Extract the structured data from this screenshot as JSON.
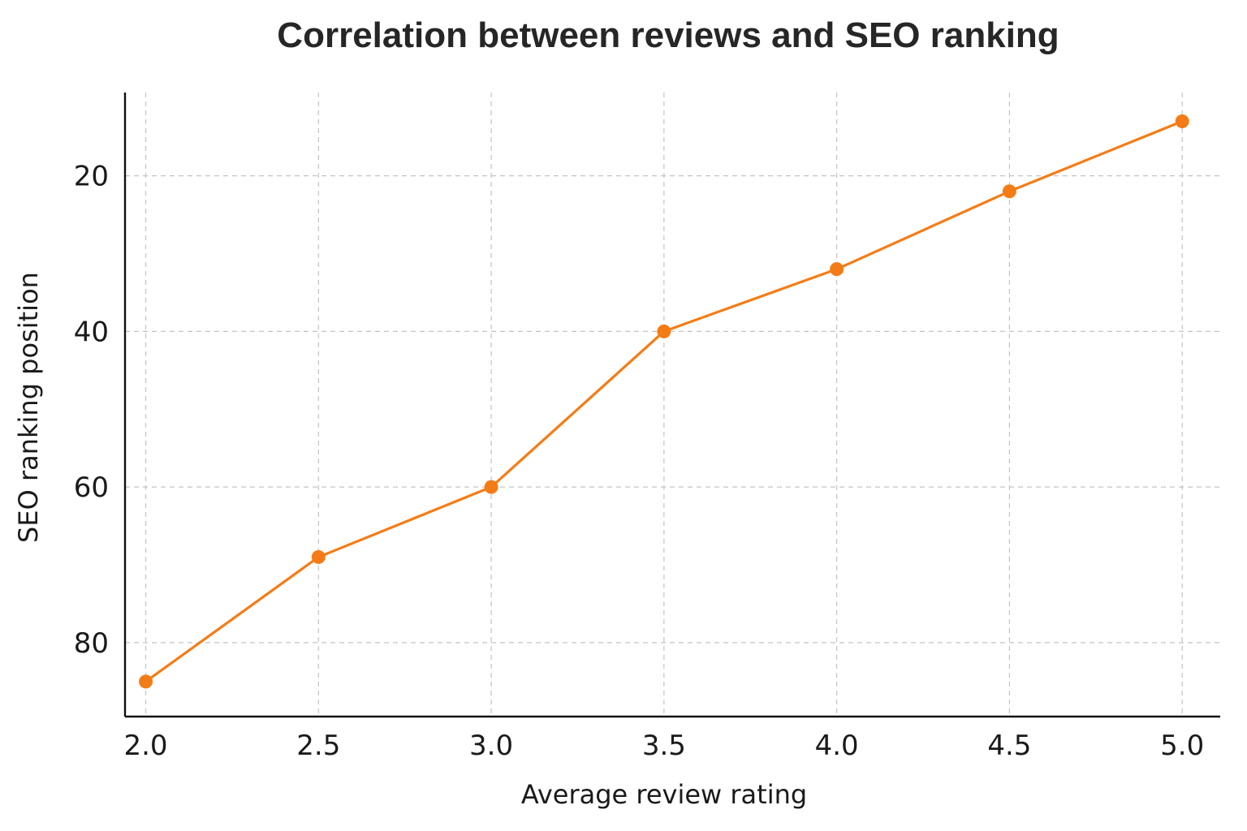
{
  "chart_data": {
    "type": "line",
    "title": "Correlation between reviews and SEO ranking",
    "xlabel": "Average review rating",
    "ylabel": "SEO ranking position",
    "x": [
      2.0,
      2.5,
      3.0,
      3.5,
      4.0,
      4.5,
      5.0
    ],
    "series": [
      {
        "values": [
          85,
          69,
          60,
          40,
          32,
          22,
          13
        ],
        "color": "#f47c17"
      }
    ],
    "xticks": [
      "2.0",
      "2.5",
      "3.0",
      "3.5",
      "4.0",
      "4.5",
      "5.0"
    ],
    "yticks": [
      20,
      40,
      60,
      80
    ],
    "ytick_labels": [
      "20",
      "40",
      "60",
      "80"
    ],
    "xlim": [
      1.94,
      5.11
    ],
    "ylim": [
      89.5,
      9.3
    ],
    "y_inverted": true,
    "grid": true,
    "marker": "circle"
  }
}
